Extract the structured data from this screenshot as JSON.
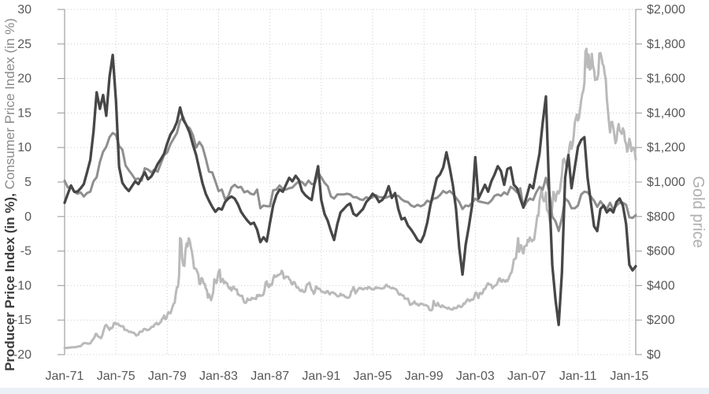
{
  "chart_data": {
    "type": "line",
    "title": "",
    "grid": true,
    "legend": "none",
    "x_axis": {
      "label": "",
      "start": 1971.0,
      "end": 2015.5,
      "tick_years": [
        1971,
        1975,
        1979,
        1983,
        1987,
        1991,
        1995,
        1999,
        2003,
        2007,
        2011,
        2015
      ],
      "tick_labels": [
        "Jan-71",
        "Jan-75",
        "Jan-79",
        "Jan-83",
        "Jan-87",
        "Jan-91",
        "Jan-95",
        "Jan-99",
        "Jan-03",
        "Jan-07",
        "Jan-11",
        "Jan-15"
      ]
    },
    "y_left": {
      "label_bold": "Producer Price Index  (in %),",
      "label_regular": " Consumer Price Index (in %)",
      "min": -20,
      "max": 30,
      "tick_step": 5,
      "tick_labels": [
        "30",
        "25",
        "20",
        "15",
        "10",
        "5",
        "0",
        "-5",
        "-10",
        "-15",
        "-20"
      ]
    },
    "y_right": {
      "label": "Gold price",
      "min": 0,
      "max": 2000,
      "tick_step": 200,
      "tick_labels": [
        "$2,000",
        "$1,800",
        "$1,600",
        "$1,400",
        "$1,200",
        "$1,000",
        "$800",
        "$600",
        "$400",
        "$200",
        "$0"
      ]
    },
    "series": [
      {
        "id": "gold",
        "name": "Gold price ($ per oz, monthly)",
        "axis": "right",
        "color": "#bababa",
        "width": 3.0,
        "start": 1971.0,
        "step": 0.0833333,
        "values": [
          38,
          39,
          39,
          39,
          41,
          40,
          41,
          43,
          42,
          43,
          43,
          44,
          46,
          48,
          48,
          49,
          55,
          62,
          66,
          67,
          66,
          65,
          63,
          64,
          65,
          74,
          84,
          91,
          102,
          120,
          120,
          107,
          103,
          100,
          95,
          107,
          129,
          150,
          168,
          172,
          163,
          154,
          143,
          155,
          152,
          159,
          182,
          184,
          176,
          180,
          178,
          170,
          167,
          164,
          165,
          163,
          144,
          143,
          142,
          139,
          132,
          131,
          133,
          128,
          127,
          126,
          118,
          110,
          114,
          116,
          131,
          134,
          132,
          136,
          148,
          149,
          147,
          141,
          143,
          145,
          150,
          159,
          162,
          161,
          173,
          178,
          184,
          175,
          176,
          184,
          189,
          206,
          212,
          227,
          206,
          208,
          227,
          246,
          242,
          239,
          258,
          279,
          295,
          301,
          355,
          392,
          392,
          455,
          675,
          665,
          554,
          517,
          514,
          601,
          644,
          627,
          674,
          661,
          624,
          595,
          557,
          500,
          499,
          496,
          480,
          465,
          409,
          410,
          444,
          438,
          413,
          410,
          384,
          374,
          330,
          350,
          334,
          315,
          339,
          364,
          436,
          422,
          415,
          444,
          481,
          492,
          420,
          433,
          438,
          413,
          423,
          416,
          412,
          394,
          382,
          389,
          371,
          386,
          394,
          381,
          377,
          378,
          348,
          348,
          341,
          340,
          341,
          320,
          303,
          299,
          304,
          325,
          317,
          317,
          317,
          329,
          324,
          326,
          325,
          322,
          345,
          339,
          346,
          340,
          343,
          343,
          349,
          377,
          418,
          424,
          399,
          391,
          408,
          401,
          409,
          438,
          460,
          450,
          451,
          461,
          460,
          465,
          468,
          486,
          477,
          442,
          444,
          452,
          451,
          451,
          438,
          431,
          413,
          407,
          420,
          419,
          404,
          388,
          390,
          384,
          371,
          368,
          375,
          365,
          362,
          367,
          394,
          409,
          410,
          417,
          393,
          374,
          369,
          352,
          363,
          395,
          390,
          381,
          382,
          378,
          366,
          364,
          363,
          358,
          357,
          367,
          368,
          356,
          349,
          359,
          360,
          361,
          354,
          354,
          344,
          339,
          337,
          341,
          353,
          343,
          346,
          344,
          335,
          335,
          329,
          329,
          330,
          342,
          367,
          372,
          392,
          379,
          355,
          364,
          374,
          383,
          387,
          382,
          384,
          377,
          381,
          386,
          386,
          380,
          392,
          390,
          384,
          379,
          379,
          377,
          382,
          391,
          385,
          388,
          386,
          384,
          383,
          383,
          385,
          387,
          400,
          405,
          396,
          393,
          392,
          385,
          384,
          387,
          383,
          381,
          378,
          369,
          355,
          347,
          352,
          345,
          344,
          341,
          324,
          324,
          323,
          325,
          306,
          289,
          289,
          297,
          296,
          308,
          299,
          292,
          293,
          284,
          289,
          296,
          294,
          292,
          287,
          287,
          286,
          283,
          277,
          261,
          256,
          257,
          265,
          311,
          293,
          283,
          284,
          300,
          286,
          280,
          275,
          285,
          282,
          275,
          274,
          270,
          266,
          272,
          266,
          262,
          263,
          261,
          272,
          270,
          268,
          272,
          283,
          283,
          276,
          276,
          282,
          296,
          294,
          303,
          314,
          321,
          313,
          310,
          319,
          317,
          319,
          333,
          357,
          359,
          341,
          328,
          356,
          357,
          351,
          360,
          379,
          379,
          390,
          407,
          414,
          405,
          407,
          403,
          384,
          392,
          398,
          401,
          405,
          421,
          439,
          442,
          424,
          423,
          434,
          429,
          422,
          431,
          425,
          438,
          456,
          470,
          477,
          510,
          550,
          555,
          557,
          611,
          675,
          596,
          634,
          633,
          598,
          586,
          628,
          630,
          631,
          665,
          655,
          679,
          667,
          656,
          665,
          665,
          713,
          755,
          806,
          803,
          890,
          922,
          968,
          910,
          889,
          890,
          940,
          839,
          830,
          807,
          761,
          816,
          859,
          943,
          924,
          890,
          929,
          946,
          934,
          949,
          997,
          1043,
          1127,
          1135,
          1118,
          1095,
          1113,
          1149,
          1205,
          1233,
          1193,
          1216,
          1271,
          1342,
          1370,
          1391,
          1356,
          1373,
          1424,
          1474,
          1510,
          1529,
          1573,
          1756,
          1772,
          1665,
          1739,
          1652,
          1656,
          1743,
          1674,
          1650,
          1591,
          1599,
          1594,
          1626,
          1745,
          1747,
          1721,
          1685,
          1672,
          1628,
          1593,
          1485,
          1414,
          1343,
          1287,
          1347,
          1349,
          1316,
          1276,
          1225,
          1244,
          1301,
          1336,
          1299,
          1289,
          1279,
          1311,
          1295,
          1237,
          1222,
          1176,
          1201,
          1251,
          1227,
          1179,
          1198,
          1199,
          1182,
          1130
        ]
      },
      {
        "id": "cpi",
        "name": "Consumer Price Index YoY (in %, quarterly)",
        "axis": "left",
        "color": "#8f8f8f",
        "width": 3.0,
        "start": 1971.0,
        "step": 0.25,
        "values": [
          5.2,
          4.2,
          4.4,
          3.6,
          3.3,
          3.5,
          2.9,
          3.4,
          3.6,
          5.1,
          5.7,
          7.9,
          9.4,
          10.1,
          11.5,
          12.1,
          11.8,
          10.2,
          9.7,
          7.4,
          6.7,
          6.1,
          5.4,
          5.5,
          5.2,
          7.0,
          6.8,
          6.4,
          6.8,
          6.5,
          7.7,
          8.9,
          9.3,
          10.5,
          11.3,
          12.1,
          13.9,
          14.4,
          13.1,
          12.8,
          11.8,
          10.0,
          10.8,
          10.1,
          8.4,
          6.5,
          6.4,
          5.1,
          3.7,
          3.9,
          2.5,
          2.9,
          4.2,
          4.6,
          4.2,
          4.3,
          3.5,
          3.7,
          3.3,
          3.2,
          3.9,
          1.2,
          1.6,
          1.5,
          1.5,
          3.8,
          3.9,
          4.5,
          4.0,
          3.9,
          4.1,
          4.2,
          4.7,
          5.1,
          5.0,
          4.5,
          5.2,
          4.7,
          4.8,
          6.3,
          5.7,
          4.9,
          4.4,
          2.9,
          2.6,
          3.2,
          3.2,
          3.2,
          3.3,
          3.2,
          2.8,
          2.8,
          2.5,
          2.4,
          2.8,
          2.6,
          2.8,
          3.1,
          2.8,
          2.8,
          2.7,
          2.9,
          3.0,
          3.0,
          3.0,
          2.5,
          2.2,
          2.1,
          1.6,
          1.4,
          1.7,
          1.5,
          1.7,
          2.3,
          2.1,
          2.6,
          2.7,
          3.1,
          3.7,
          3.4,
          3.7,
          3.3,
          2.7,
          2.1,
          1.1,
          1.6,
          1.5,
          2.0,
          2.6,
          2.2,
          2.1,
          2.0,
          1.9,
          2.3,
          3.0,
          3.2,
          3.0,
          3.5,
          3.2,
          4.3,
          4.0,
          3.5,
          4.1,
          1.3,
          2.1,
          2.6,
          2.4,
          3.5,
          4.3,
          3.9,
          5.6,
          3.7,
          0.0,
          -0.7,
          -2.1,
          -0.2,
          2.6,
          2.2,
          1.2,
          1.2,
          1.6,
          3.2,
          3.6,
          3.5,
          2.9,
          2.3,
          1.4,
          2.2,
          1.6,
          1.1,
          2.0,
          1.0,
          1.6,
          2.0,
          2.0,
          1.7,
          -0.1,
          -0.2,
          0.2
        ]
      },
      {
        "id": "ppi",
        "name": "Producer Price Index YoY (in %, quarterly)",
        "axis": "left",
        "color": "#474747",
        "width": 3.3,
        "start": 1971.0,
        "step": 0.25,
        "values": [
          2.0,
          3.3,
          4.5,
          3.6,
          3.6,
          4.1,
          4.7,
          6.4,
          8.2,
          12.3,
          18.0,
          15.6,
          17.6,
          14.6,
          20.2,
          23.4,
          16.8,
          7.2,
          4.9,
          4.2,
          3.7,
          4.4,
          5.1,
          4.7,
          5.6,
          6.4,
          5.4,
          5.8,
          6.6,
          7.6,
          8.3,
          9.1,
          10.6,
          11.9,
          12.6,
          13.7,
          15.8,
          14.0,
          13.2,
          12.1,
          10.4,
          8.9,
          6.8,
          4.8,
          3.3,
          2.3,
          1.4,
          0.7,
          1.2,
          1.0,
          2.1,
          2.6,
          2.9,
          2.6,
          1.8,
          0.7,
          0.0,
          -0.6,
          -1.1,
          -0.9,
          -1.9,
          -3.7,
          -3.0,
          -3.6,
          -0.9,
          1.6,
          3.1,
          3.9,
          3.6,
          4.6,
          5.6,
          5.1,
          5.9,
          5.3,
          3.7,
          3.1,
          2.7,
          2.4,
          5.1,
          7.3,
          2.4,
          0.4,
          -0.6,
          -2.1,
          -3.4,
          -1.1,
          0.6,
          1.1,
          1.6,
          1.9,
          0.4,
          0.1,
          0.6,
          1.1,
          2.1,
          2.6,
          3.3,
          2.9,
          2.1,
          2.4,
          3.1,
          4.4,
          2.7,
          3.4,
          1.1,
          -0.4,
          -0.2,
          -1.3,
          -1.9,
          -2.6,
          -3.4,
          -3.7,
          -2.7,
          -0.9,
          1.6,
          3.6,
          5.6,
          6.1,
          7.1,
          9.3,
          7.1,
          4.6,
          1.1,
          -4.6,
          -8.4,
          -4.1,
          -1.4,
          1.6,
          8.6,
          2.6,
          3.6,
          4.6,
          3.6,
          5.1,
          6.1,
          7.3,
          6.6,
          4.6,
          6.9,
          7.1,
          4.6,
          4.1,
          2.6,
          1.3,
          2.9,
          4.6,
          4.1,
          6.6,
          9.1,
          13.6,
          17.4,
          4.1,
          -7.1,
          -12.1,
          -15.7,
          -8.1,
          5.6,
          8.9,
          4.1,
          7.1,
          10.1,
          11.1,
          11.5,
          5.6,
          2.1,
          -1.4,
          -2.1,
          1.1,
          1.6,
          0.6,
          1.1,
          0.6,
          2.1,
          2.6,
          1.6,
          -1.1,
          -7.0,
          -7.8,
          -7.2
        ]
      }
    ]
  }
}
